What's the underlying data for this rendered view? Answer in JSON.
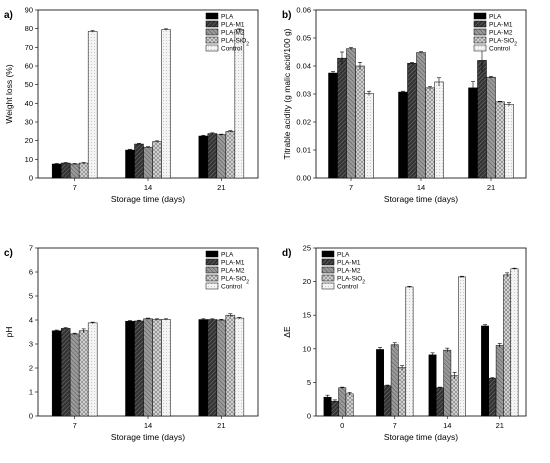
{
  "colors": {
    "PLA": "#000000",
    "PLA-M1": "#3a3a3a",
    "PLA-M2": "#8a8a8a",
    "PLA-SiO2": "#c2c2c2",
    "Control": "#ffffff"
  },
  "chart_data": [
    {
      "type": "bar",
      "panel": "a)",
      "xlabel": "Storage time (days)",
      "ylabel": "Weight loss (%)",
      "categories": [
        "7",
        "14",
        "21"
      ],
      "ylim": [
        0,
        90
      ],
      "yticks": [
        "0",
        "10",
        "20",
        "30",
        "40",
        "50",
        "60",
        "70",
        "80",
        "90"
      ],
      "legend_placement": "top-right",
      "series": [
        {
          "name": "PLA",
          "pattern": "solid-black",
          "values": [
            7.5,
            15.0,
            22.5
          ],
          "errors": [
            0.3,
            0.4,
            0.4
          ]
        },
        {
          "name": "PLA-M1",
          "pattern": "dark-hatch",
          "values": [
            8.0,
            18.2,
            23.8
          ],
          "errors": [
            0.3,
            0.4,
            0.4
          ]
        },
        {
          "name": "PLA-M2",
          "pattern": "grey-hatch",
          "values": [
            7.5,
            16.5,
            23.2
          ],
          "errors": [
            0.3,
            0.3,
            0.3
          ]
        },
        {
          "name": "PLA-SiO",
          "sub": "2",
          "pattern": "crosshatch",
          "values": [
            8.0,
            19.5,
            25.0
          ],
          "errors": [
            0.3,
            0.4,
            0.4
          ]
        },
        {
          "name": "Control",
          "pattern": "light-dots",
          "values": [
            78.5,
            79.5,
            79.5
          ],
          "errors": [
            0.4,
            0.4,
            0.4
          ]
        }
      ]
    },
    {
      "type": "bar",
      "panel": "b)",
      "xlabel": "Storage time (days)",
      "ylabel": "Titrable acidity (g malic acid/100 g)",
      "categories": [
        "7",
        "14",
        "21"
      ],
      "ylim": [
        0,
        0.06
      ],
      "yticks": [
        "0.00",
        "0.01",
        "0.02",
        "0.03",
        "0.04",
        "0.05",
        "0.06"
      ],
      "legend_placement": "top-right",
      "series": [
        {
          "name": "PLA",
          "pattern": "solid-black",
          "values": [
            0.0375,
            0.0307,
            0.0322
          ],
          "errors": [
            0.0005,
            0.0003,
            0.0022
          ]
        },
        {
          "name": "PLA-M1",
          "pattern": "dark-hatch",
          "values": [
            0.0428,
            0.041,
            0.042
          ],
          "errors": [
            0.0022,
            0.0003,
            0.004
          ]
        },
        {
          "name": "PLA-M2",
          "pattern": "grey-hatch",
          "values": [
            0.0462,
            0.0448,
            0.036
          ],
          "errors": [
            0.0004,
            0.0003,
            0.0003
          ]
        },
        {
          "name": "PLA-SiO",
          "sub": "2",
          "pattern": "crosshatch",
          "values": [
            0.04,
            0.0322,
            0.0272
          ],
          "errors": [
            0.0013,
            0.0004,
            0.0002
          ]
        },
        {
          "name": "Control",
          "pattern": "light-dots",
          "values": [
            0.0302,
            0.0343,
            0.0263
          ],
          "errors": [
            0.0008,
            0.0015,
            0.0006
          ]
        }
      ]
    },
    {
      "type": "bar",
      "panel": "c)",
      "xlabel": "Storage time (days)",
      "ylabel": "pH",
      "categories": [
        "7",
        "14",
        "21"
      ],
      "ylim": [
        0,
        7
      ],
      "yticks": [
        "0",
        "1",
        "2",
        "3",
        "4",
        "5",
        "6",
        "7"
      ],
      "legend_placement": "top-right",
      "series": [
        {
          "name": "PLA",
          "pattern": "solid-black",
          "values": [
            3.55,
            3.95,
            4.02
          ],
          "errors": [
            0.03,
            0.03,
            0.03
          ]
        },
        {
          "name": "PLA-M1",
          "pattern": "dark-hatch",
          "values": [
            3.65,
            3.96,
            4.02
          ],
          "errors": [
            0.03,
            0.03,
            0.03
          ]
        },
        {
          "name": "PLA-M2",
          "pattern": "grey-hatch",
          "values": [
            3.42,
            4.05,
            4.0
          ],
          "errors": [
            0.03,
            0.03,
            0.03
          ]
        },
        {
          "name": "PLA-SiO",
          "sub": "2",
          "pattern": "crosshatch",
          "values": [
            3.55,
            4.02,
            4.2
          ],
          "errors": [
            0.08,
            0.03,
            0.06
          ]
        },
        {
          "name": "Control",
          "pattern": "light-dots",
          "values": [
            3.88,
            4.02,
            4.08
          ],
          "errors": [
            0.03,
            0.03,
            0.03
          ]
        }
      ]
    },
    {
      "type": "bar",
      "panel": "d)",
      "xlabel": "Storage time (days)",
      "ylabel": "ΔE",
      "categories": [
        "0",
        "7",
        "14",
        "21"
      ],
      "ylim": [
        0,
        25
      ],
      "yticks": [
        "0",
        "5",
        "10",
        "15",
        "20",
        "25"
      ],
      "legend_placement": "top-left",
      "series": [
        {
          "name": "PLA",
          "pattern": "solid-black",
          "values": [
            2.8,
            9.9,
            9.1,
            13.4
          ],
          "errors": [
            0.3,
            0.3,
            0.3,
            0.2
          ]
        },
        {
          "name": "PLA-M1",
          "pattern": "dark-hatch",
          "values": [
            2.2,
            4.5,
            4.2,
            5.6
          ],
          "errors": [
            0.2,
            0.1,
            0.1,
            0.1
          ]
        },
        {
          "name": "PLA-M2",
          "pattern": "grey-hatch",
          "values": [
            4.2,
            10.6,
            9.8,
            10.5
          ],
          "errors": [
            0.1,
            0.3,
            0.3,
            0.3
          ]
        },
        {
          "name": "PLA-SiO",
          "sub": "2",
          "pattern": "crosshatch",
          "values": [
            3.3,
            7.2,
            6.0,
            21.0
          ],
          "errors": [
            0.2,
            0.3,
            0.5,
            0.3
          ]
        },
        {
          "name": "Control",
          "pattern": "light-dots",
          "values": [
            0.0,
            19.2,
            20.7,
            21.9
          ],
          "errors": [
            0.0,
            0.1,
            0.1,
            0.1
          ]
        }
      ]
    }
  ]
}
